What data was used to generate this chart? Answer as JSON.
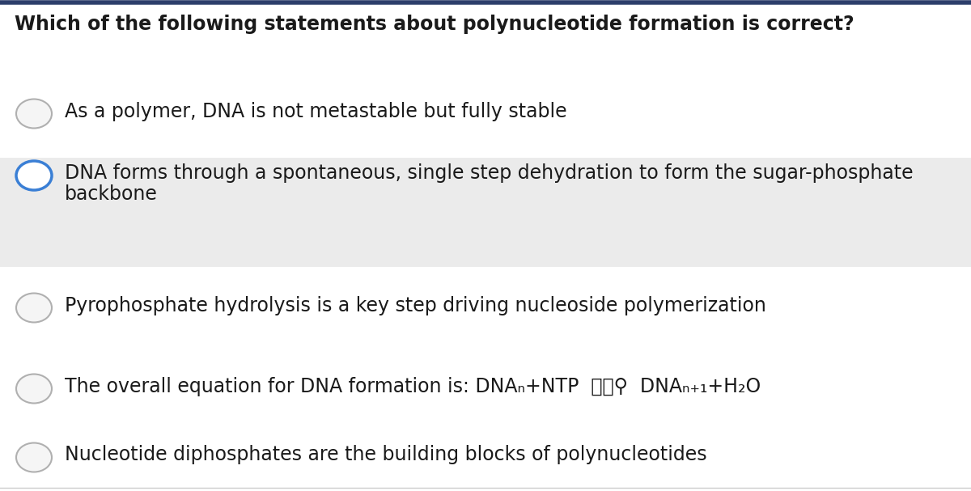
{
  "title": "Which of the following statements about polynucleotide formation is correct?",
  "title_fontsize": 17,
  "title_fontweight": "bold",
  "title_color": "#1a1a1a",
  "background_color": "#ffffff",
  "top_border_color": "#2c3e6b",
  "options": [
    {
      "lines": [
        "As a polymer, DNA is not metastable but fully stable"
      ],
      "selected": false,
      "highlighted": false,
      "circle_color": "#b0b0b0",
      "circle_fill": "#f5f5f5"
    },
    {
      "lines": [
        "DNA forms through a spontaneous, single step dehydration to form the sugar-phosphate",
        "backbone"
      ],
      "selected": true,
      "highlighted": true,
      "circle_color": "#3a7fd5",
      "circle_fill": "#ffffff"
    },
    {
      "lines": [
        "Pyrophosphate hydrolysis is a key step driving nucleoside polymerization"
      ],
      "selected": false,
      "highlighted": false,
      "circle_color": "#b0b0b0",
      "circle_fill": "#f5f5f5"
    },
    {
      "lines": [
        "The overall equation for DNA formation is: DNAₙ+NTP  📄📄⚲  DNAₙ₊₁+H₂O"
      ],
      "selected": false,
      "highlighted": false,
      "circle_color": "#b0b0b0",
      "circle_fill": "#f5f5f5"
    },
    {
      "lines": [
        "Nucleotide diphosphates are the building blocks of polynucleotides"
      ],
      "selected": false,
      "highlighted": false,
      "circle_color": "#b0b0b0",
      "circle_fill": "#f5f5f5"
    }
  ],
  "option_fontsize": 17,
  "option_fontweight": "normal",
  "option_text_color": "#1a1a1a",
  "highlight_bg_color": "#ebebeb",
  "fig_width": 12.0,
  "fig_height": 6.07,
  "dpi": 100
}
